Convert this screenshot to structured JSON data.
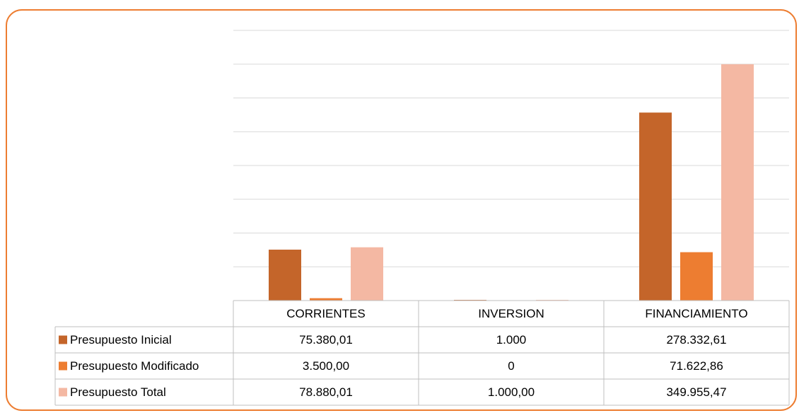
{
  "chart_data": {
    "type": "bar",
    "categories": [
      "CORRIENTES",
      "INVERSION",
      "FINANCIAMIENTO"
    ],
    "series": [
      {
        "name": "Presupuesto Inicial",
        "color": "#c4652a",
        "values": [
          75380.01,
          1000,
          278332.61
        ],
        "value_labels": [
          "75.380,01",
          "1.000",
          "278.332,61"
        ]
      },
      {
        "name": "Presupuesto Modificado",
        "color": "#ed7d31",
        "values": [
          3500,
          0,
          71622.86
        ],
        "value_labels": [
          "3.500,00",
          "0",
          "71.622,86"
        ]
      },
      {
        "name": "Presupuesto Total",
        "color": "#f4b8a3",
        "values": [
          78880.01,
          1000,
          349955.47
        ],
        "value_labels": [
          "78.880,01",
          "1.000,00",
          "349.955,47"
        ]
      }
    ],
    "ylim": [
      0,
      400000
    ],
    "yticks": [
      0,
      50000,
      100000,
      150000,
      200000,
      250000,
      300000,
      350000,
      400000
    ],
    "grid": true
  }
}
